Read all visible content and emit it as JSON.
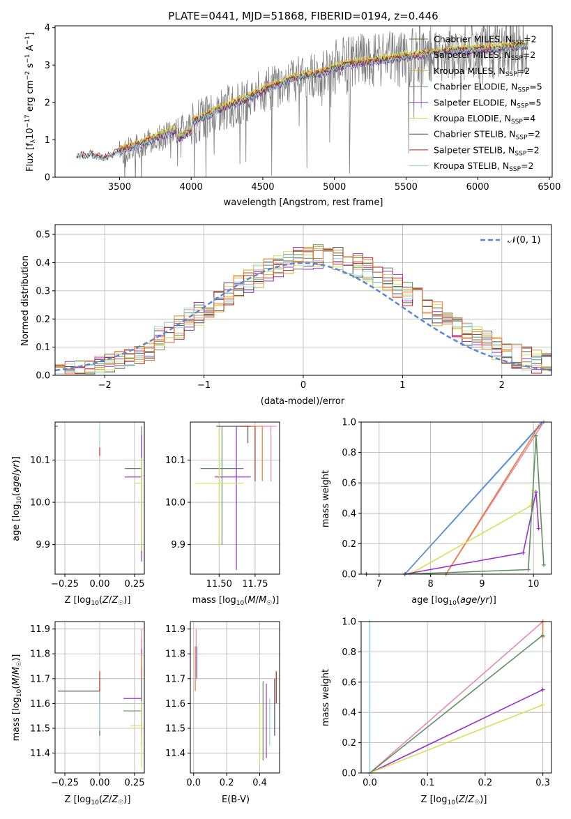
{
  "chart_data": [
    {
      "type": "line",
      "title": "PLATE=0441, MJD=51868, FIBERID=0194, z=0.446",
      "xlabel": "wavelength [Angstrom, rest frame]",
      "ylabel": "Flux [f_λ 10^-17 erg cm^-2 s^-1 A^-1]",
      "xlim": [
        3050,
        6520
      ],
      "ylim": [
        0,
        4.05
      ],
      "xticks": [
        "3500",
        "4000",
        "4500",
        "5000",
        "5500",
        "6000",
        "6500"
      ],
      "yticks": [
        "0",
        "1",
        "2",
        "3",
        "4"
      ],
      "xtick_values": [
        3500,
        4000,
        4500,
        5000,
        5500,
        6000,
        6500
      ],
      "ytick_values": [
        0,
        1,
        2,
        3,
        4
      ],
      "legend_position": "upper-right",
      "continuum": {
        "x": [
          3200,
          3300,
          3400,
          3500,
          3600,
          3700,
          3800,
          3900,
          4000,
          4100,
          4200,
          4300,
          4400,
          4500,
          4600,
          4700,
          4800,
          4900,
          5000,
          5100,
          5200,
          5300,
          5400,
          5500,
          5600,
          5700,
          5800,
          5900,
          6000,
          6100,
          6200,
          6350
        ],
        "y": [
          0.55,
          0.6,
          0.5,
          0.7,
          0.8,
          0.95,
          1.1,
          1.25,
          1.45,
          1.6,
          1.8,
          1.95,
          2.1,
          2.3,
          2.45,
          2.6,
          2.7,
          2.75,
          2.9,
          3.0,
          3.05,
          3.1,
          3.15,
          3.2,
          3.25,
          3.3,
          3.35,
          3.38,
          3.4,
          3.42,
          3.45,
          3.5
        ]
      },
      "series": [
        {
          "name": "Chabrier MILES, N_SSP=2",
          "color": "#556b2f",
          "offset": 0.05,
          "lw": 0.9
        },
        {
          "name": "Salpeter MILES, N_SSP=2",
          "color": "#e9967a",
          "offset": 0.08,
          "lw": 0.9
        },
        {
          "name": "Kroupa MILES, N_SSP=2",
          "color": "#daa520",
          "offset": 0.06,
          "lw": 0.9
        },
        {
          "name": "Chabrier ELODIE, N_SSP=5",
          "color": "#5f8f5f",
          "offset": 0.02,
          "lw": 0.9
        },
        {
          "name": "Salpeter ELODIE, N_SSP=5",
          "color": "#9932cc",
          "offset": -0.02,
          "lw": 0.9
        },
        {
          "name": "Kroupa ELODIE, N_SSP=4",
          "color": "#d4e157",
          "offset": 0.1,
          "lw": 0.9
        },
        {
          "name": "Chabrier STELIB, N_SSP=2",
          "color": "#505050",
          "offset": 0.0,
          "lw": 0.9
        },
        {
          "name": "Salpeter STELIB, N_SSP=2",
          "color": "#b22222",
          "offset": 0.03,
          "lw": 0.9
        },
        {
          "name": "Kroupa STELIB, N_SSP=2",
          "color": "#8fd3d9",
          "offset": 0.0,
          "lw": 0.9
        }
      ],
      "legend_labels": [
        {
          "pre": "Chabrier MILES, N",
          "sub": "SSP",
          "post": "=2"
        },
        {
          "pre": "Salpeter MILES, N",
          "sub": "SSP",
          "post": "=2"
        },
        {
          "pre": "Kroupa MILES, N",
          "sub": "SSP",
          "post": "=2"
        },
        {
          "pre": "Chabrier ELODIE, N",
          "sub": "SSP",
          "post": "=5"
        },
        {
          "pre": "Salpeter ELODIE, N",
          "sub": "SSP",
          "post": "=5"
        },
        {
          "pre": "Kroupa ELODIE, N",
          "sub": "SSP",
          "post": "=4"
        },
        {
          "pre": "Chabrier STELIB, N",
          "sub": "SSP",
          "post": "=2"
        },
        {
          "pre": "Salpeter STELIB, N",
          "sub": "SSP",
          "post": "=2"
        },
        {
          "pre": "Kroupa STELIB, N",
          "sub": "SSP",
          "post": "=2"
        }
      ]
    },
    {
      "type": "line",
      "xlabel": "(data-model)/error",
      "ylabel": "Normed distribution",
      "xlim": [
        -2.5,
        2.5
      ],
      "ylim": [
        0,
        0.535
      ],
      "xticks": [
        "−2",
        "−1",
        "0",
        "1",
        "2"
      ],
      "yticks": [
        "0.0",
        "0.1",
        "0.2",
        "0.3",
        "0.4",
        "0.5"
      ],
      "xtick_values": [
        -2,
        -1,
        0,
        1,
        2
      ],
      "ytick_values": [
        0,
        0.1,
        0.2,
        0.3,
        0.4,
        0.5
      ],
      "gaussian": {
        "name": "N(0,1)",
        "color": "#5b86d6",
        "mu": 0,
        "sigma": 1
      },
      "legend_label": "𝒩(0, 1)",
      "legend_position": "upper-right",
      "hist_colors": [
        "#556b2f",
        "#e9967a",
        "#daa520",
        "#5f8f5f",
        "#9932cc",
        "#d4e157",
        "#505050",
        "#b22222",
        "#8fd3d9",
        "#f07a3a"
      ]
    },
    {
      "type": "scatter",
      "xlabel": "Z [log10(Z/Z☉)]",
      "ylabel": "age [log10(age/yr)]",
      "xlim": [
        -0.32,
        0.32
      ],
      "ylim": [
        9.83,
        10.19
      ],
      "xticks": [
        "−0.25",
        "0.00",
        "0.25"
      ],
      "yticks": [
        "9.9",
        "10.0",
        "10.1"
      ],
      "xtick_values": [
        -0.25,
        0,
        0.25
      ],
      "ytick_values": [
        9.9,
        10.0,
        10.1
      ],
      "points": [
        {
          "x": -0.3,
          "y": 10.18,
          "xerr": [
            0.3,
            0
          ],
          "yerr": [
            0,
            0
          ],
          "color": "#505050"
        },
        {
          "x": 0.0,
          "y": 10.18,
          "xerr": [
            0,
            0
          ],
          "yerr": [
            0.04,
            0
          ],
          "color": "#8fd3d9"
        },
        {
          "x": 0.0,
          "y": 10.12,
          "xerr": [
            0,
            0
          ],
          "yerr": [
            0.01,
            0.01
          ],
          "color": "#b22222"
        },
        {
          "x": 0.3,
          "y": 10.08,
          "xerr": [
            0.12,
            0
          ],
          "yerr": [
            0.2,
            0.1
          ],
          "color": "#5f8f5f"
        },
        {
          "x": 0.3,
          "y": 10.06,
          "xerr": [
            0.12,
            0
          ],
          "yerr": [
            0.2,
            0.1
          ],
          "color": "#9932cc"
        },
        {
          "x": 0.3,
          "y": 10.045,
          "xerr": [
            0.05,
            0
          ],
          "yerr": [
            0.16,
            0.06
          ],
          "color": "#d4e157"
        }
      ]
    },
    {
      "type": "scatter",
      "xlabel": "mass [log10(M/M☉)]",
      "xlim": [
        11.3,
        11.92
      ],
      "ylim": [
        9.83,
        10.19
      ],
      "xticks": [
        "11.50",
        "11.75"
      ],
      "yticks": [
        "9.9",
        "10.0",
        "10.1"
      ],
      "xtick_values": [
        11.5,
        11.75
      ],
      "ytick_values": [
        9.9,
        10.0,
        10.1
      ],
      "points": [
        {
          "x": 11.52,
          "y": 10.08,
          "xerr": [
            0.15,
            0.15
          ],
          "yerr": [
            0.18,
            0.1
          ],
          "color": "#5f8f5f"
        },
        {
          "x": 11.62,
          "y": 10.06,
          "xerr": [
            0.15,
            0.1
          ],
          "yerr": [
            0.22,
            0.12
          ],
          "color": "#9932cc"
        },
        {
          "x": 11.5,
          "y": 10.045,
          "xerr": [
            0.17,
            0.17
          ],
          "yerr": [
            0.15,
            0.13
          ],
          "color": "#d4e157"
        },
        {
          "x": 11.7,
          "y": 10.18,
          "xerr": [
            0.22,
            0
          ],
          "yerr": [
            0.04,
            0
          ],
          "color": "#505050"
        },
        {
          "x": 11.75,
          "y": 10.18,
          "xerr": [
            0.1,
            0
          ],
          "yerr": [
            0.13,
            0
          ],
          "color": "#b22222"
        },
        {
          "x": 11.8,
          "y": 10.18,
          "xerr": [
            0.08,
            0.06
          ],
          "yerr": [
            0.13,
            0
          ],
          "color": "#f07a3a"
        },
        {
          "x": 11.86,
          "y": 10.18,
          "xerr": [
            0.06,
            0.04
          ],
          "yerr": [
            0.13,
            0
          ],
          "color": "#e58ab5"
        }
      ]
    },
    {
      "type": "line",
      "xlabel": "age [log10(age/yr)]",
      "ylabel": "mass weight",
      "xlim": [
        6.65,
        10.35
      ],
      "ylim": [
        0,
        1.0
      ],
      "xticks": [
        "7",
        "8",
        "9",
        "10"
      ],
      "yticks": [
        "0.0",
        "0.2",
        "0.4",
        "0.6",
        "0.8",
        "1.0"
      ],
      "xtick_values": [
        7,
        8,
        9,
        10
      ],
      "ytick_values": [
        0,
        0.2,
        0.4,
        0.6,
        0.8,
        1.0
      ],
      "series": [
        {
          "color": "#8fd3d9",
          "x": [
            7.5,
            10.2
          ],
          "y": [
            0,
            1.0
          ]
        },
        {
          "color": "#5b86d6",
          "x": [
            7.5,
            10.15
          ],
          "y": [
            0,
            0.99
          ]
        },
        {
          "color": "#e58ab5",
          "x": [
            8.3,
            10.2
          ],
          "y": [
            0,
            1.0
          ]
        },
        {
          "color": "#f07a3a",
          "x": [
            8.3,
            10.1
          ],
          "y": [
            0,
            0.97
          ]
        },
        {
          "color": "#d4e157",
          "x": [
            7.6,
            9.95,
            10.0
          ],
          "y": [
            0,
            0.45,
            0.55
          ]
        },
        {
          "color": "#9932cc",
          "x": [
            7.5,
            9.8,
            10.05,
            10.1
          ],
          "y": [
            0,
            0.14,
            0.54,
            0.3
          ]
        },
        {
          "color": "#5f8f5f",
          "x": [
            7.5,
            9.9,
            10.05,
            10.2
          ],
          "y": [
            0,
            0.03,
            0.91,
            0.06
          ]
        },
        {
          "color": "#505050",
          "x": [
            6.75
          ],
          "y": [
            0
          ]
        }
      ]
    },
    {
      "type": "scatter",
      "xlabel": "Z [log10(Z/Z☉)]",
      "ylabel": "mass [log10(M/M☉)]",
      "xlim": [
        -0.32,
        0.32
      ],
      "ylim": [
        11.32,
        11.93
      ],
      "xticks": [
        "−0.25",
        "0.00",
        "0.25"
      ],
      "yticks": [
        "11.4",
        "11.5",
        "11.6",
        "11.7",
        "11.8",
        "11.9"
      ],
      "xtick_values": [
        -0.25,
        0,
        0.25
      ],
      "ytick_values": [
        11.4,
        11.5,
        11.6,
        11.7,
        11.8,
        11.9
      ],
      "points": [
        {
          "x": -0.3,
          "y": 11.65,
          "xerr": [
            0,
            0.3
          ],
          "yerr": [
            0,
            0
          ],
          "color": "#505050"
        },
        {
          "x": 0.0,
          "y": 11.62,
          "xerr": [
            0,
            0
          ],
          "yerr": [
            0.15,
            0.04
          ],
          "color": "#505050"
        },
        {
          "x": 0.0,
          "y": 11.65,
          "xerr": [
            0,
            0
          ],
          "yerr": [
            0.05,
            0.08
          ],
          "color": "#b22222"
        },
        {
          "x": 0.0,
          "y": 11.55,
          "xerr": [
            0,
            0
          ],
          "yerr": [
            0.06,
            0.1
          ],
          "color": "#8fd3d9"
        },
        {
          "x": 0.3,
          "y": 11.62,
          "xerr": [
            0.13,
            0
          ],
          "yerr": [
            0.15,
            0.24
          ],
          "color": "#9932cc"
        },
        {
          "x": 0.3,
          "y": 11.57,
          "xerr": [
            0.13,
            0
          ],
          "yerr": [
            0.14,
            0.18
          ],
          "color": "#5f8f5f"
        },
        {
          "x": 0.3,
          "y": 11.51,
          "xerr": [
            0.08,
            0
          ],
          "yerr": [
            0.17,
            0.1
          ],
          "color": "#d4e157"
        },
        {
          "x": 0.3,
          "y": 11.75,
          "xerr": [
            0,
            0
          ],
          "yerr": [
            0.05,
            0.05
          ],
          "color": "#f07a3a"
        },
        {
          "x": 0.3,
          "y": 11.86,
          "xerr": [
            0,
            0
          ],
          "yerr": [
            0.04,
            0.04
          ],
          "color": "#e58ab5"
        }
      ]
    },
    {
      "type": "scatter",
      "xlabel": "E(B-V)",
      "xlim": [
        -0.02,
        0.52
      ],
      "ylim": [
        11.32,
        11.93
      ],
      "xticks": [
        "0.0",
        "0.2",
        "0.4"
      ],
      "yticks": [
        "11.4",
        "11.5",
        "11.6",
        "11.7",
        "11.8",
        "11.9"
      ],
      "xtick_values": [
        0,
        0.2,
        0.4
      ],
      "ytick_values": [
        11.4,
        11.5,
        11.6,
        11.7,
        11.8,
        11.9
      ],
      "points": [
        {
          "x": 0.01,
          "y": 11.75,
          "xerr": [
            0,
            0
          ],
          "yerr": [
            0.1,
            0.08
          ],
          "color": "#f07a3a"
        },
        {
          "x": 0.015,
          "y": 11.8,
          "xerr": [
            0,
            0
          ],
          "yerr": [
            0.1,
            0.1
          ],
          "color": "#e58ab5"
        },
        {
          "x": 0.02,
          "y": 11.78,
          "xerr": [
            0,
            0
          ],
          "yerr": [
            0.08,
            0.05
          ],
          "color": "#5b86d6"
        },
        {
          "x": 0.4,
          "y": 11.5,
          "xerr": [
            0,
            0
          ],
          "yerr": [
            0.14,
            0.1
          ],
          "color": "#d4e157"
        },
        {
          "x": 0.42,
          "y": 11.53,
          "xerr": [
            0,
            0
          ],
          "yerr": [
            0.16,
            0.16
          ],
          "color": "#5f8f5f"
        },
        {
          "x": 0.44,
          "y": 11.55,
          "xerr": [
            0,
            0
          ],
          "yerr": [
            0.17,
            0.13
          ],
          "color": "#9932cc"
        },
        {
          "x": 0.46,
          "y": 11.55,
          "xerr": [
            0,
            0
          ],
          "yerr": [
            0.12,
            0.07
          ],
          "color": "#8fd3d9"
        },
        {
          "x": 0.49,
          "y": 11.6,
          "xerr": [
            0,
            0
          ],
          "yerr": [
            0.13,
            0.1
          ],
          "color": "#505050"
        },
        {
          "x": 0.5,
          "y": 11.65,
          "xerr": [
            0,
            0
          ],
          "yerr": [
            0.05,
            0.08
          ],
          "color": "#b22222"
        }
      ]
    },
    {
      "type": "line",
      "xlabel": "Z [log10(Z/Z☉)]",
      "ylabel": "mass weight",
      "xlim": [
        -0.015,
        0.315
      ],
      "ylim": [
        0,
        1.0
      ],
      "xticks": [
        "0.0",
        "0.1",
        "0.2",
        "0.3"
      ],
      "yticks": [
        "0.0",
        "0.2",
        "0.4",
        "0.6",
        "0.8",
        "1.0"
      ],
      "xtick_values": [
        0,
        0.1,
        0.2,
        0.3
      ],
      "ytick_values": [
        0,
        0.2,
        0.4,
        0.6,
        0.8,
        1.0
      ],
      "series": [
        {
          "color": "#e58ab5",
          "x": [
            0,
            0.3
          ],
          "y": [
            0,
            1.0
          ]
        },
        {
          "color": "#f07a3a",
          "x": [
            0.3,
            0.3
          ],
          "y": [
            0.9,
            1.0
          ]
        },
        {
          "color": "#5f8f5f",
          "x": [
            0,
            0.3
          ],
          "y": [
            0,
            0.91
          ]
        },
        {
          "color": "#9932cc",
          "x": [
            0,
            0.3
          ],
          "y": [
            0,
            0.55
          ]
        },
        {
          "color": "#d4e157",
          "x": [
            0,
            0.3
          ],
          "y": [
            0,
            0.45
          ]
        },
        {
          "color": "#8fd3d9",
          "x": [
            0,
            0
          ],
          "y": [
            0,
            1.0
          ]
        }
      ]
    }
  ]
}
